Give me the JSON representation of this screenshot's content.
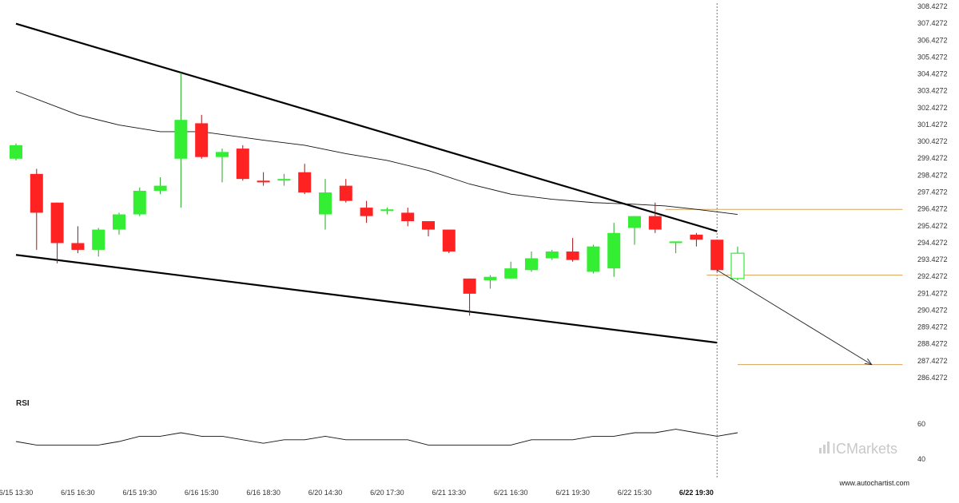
{
  "chart_data": {
    "type": "candlestick",
    "y_axis": {
      "ticks": [
        "308.4272",
        "307.4272",
        "306.4272",
        "305.4272",
        "304.4272",
        "303.4272",
        "302.4272",
        "301.4272",
        "300.4272",
        "299.4272",
        "298.4272",
        "297.4272",
        "296.4272",
        "295.4272",
        "294.4272",
        "293.4272",
        "292.4272",
        "291.4272",
        "290.4272",
        "289.4272",
        "288.4272",
        "287.4272",
        "286.4272"
      ],
      "range": [
        286.0,
        308.4272
      ]
    },
    "x_axis": {
      "ticks": [
        {
          "label": "6/15 13:30",
          "index": 0
        },
        {
          "label": "6/15 16:30",
          "index": 3
        },
        {
          "label": "6/15 19:30",
          "index": 6
        },
        {
          "label": "6/16 15:30",
          "index": 9
        },
        {
          "label": "6/16 18:30",
          "index": 12
        },
        {
          "label": "6/20 14:30",
          "index": 15
        },
        {
          "label": "6/20 17:30",
          "index": 18
        },
        {
          "label": "6/21 13:30",
          "index": 21
        },
        {
          "label": "6/21 16:30",
          "index": 24
        },
        {
          "label": "6/21 19:30",
          "index": 27
        },
        {
          "label": "6/22 15:30",
          "index": 30
        },
        {
          "label": "6/22 19:30",
          "index": 33,
          "bold": true
        }
      ]
    },
    "candles": [
      {
        "o": 299.4,
        "h": 300.3,
        "l": 299.3,
        "c": 300.2
      },
      {
        "o": 298.5,
        "h": 298.8,
        "l": 294.0,
        "c": 296.2
      },
      {
        "o": 296.8,
        "h": 296.8,
        "l": 293.2,
        "c": 294.4
      },
      {
        "o": 294.4,
        "h": 295.4,
        "l": 293.8,
        "c": 294.0
      },
      {
        "o": 294.0,
        "h": 295.3,
        "l": 293.6,
        "c": 295.2
      },
      {
        "o": 295.2,
        "h": 296.2,
        "l": 294.9,
        "c": 296.1
      },
      {
        "o": 296.1,
        "h": 297.7,
        "l": 296.0,
        "c": 297.5
      },
      {
        "o": 297.5,
        "h": 298.3,
        "l": 297.3,
        "c": 297.8
      },
      {
        "o": 299.4,
        "h": 304.5,
        "l": 296.5,
        "c": 301.7
      },
      {
        "o": 301.5,
        "h": 302.0,
        "l": 299.4,
        "c": 299.5
      },
      {
        "o": 299.5,
        "h": 300.0,
        "l": 298.0,
        "c": 299.8
      },
      {
        "o": 300.0,
        "h": 300.2,
        "l": 298.1,
        "c": 298.2
      },
      {
        "o": 298.1,
        "h": 298.6,
        "l": 297.8,
        "c": 298.0
      },
      {
        "o": 298.2,
        "h": 298.5,
        "l": 297.8,
        "c": 298.2
      },
      {
        "o": 298.6,
        "h": 299.1,
        "l": 297.3,
        "c": 297.4
      },
      {
        "o": 296.1,
        "h": 298.2,
        "l": 295.2,
        "c": 297.4
      },
      {
        "o": 297.8,
        "h": 298.2,
        "l": 296.8,
        "c": 296.9
      },
      {
        "o": 296.5,
        "h": 296.9,
        "l": 295.6,
        "c": 296.0
      },
      {
        "o": 296.3,
        "h": 296.5,
        "l": 296.1,
        "c": 296.4
      },
      {
        "o": 296.2,
        "h": 296.5,
        "l": 295.4,
        "c": 295.7
      },
      {
        "o": 295.7,
        "h": 295.7,
        "l": 294.8,
        "c": 295.2
      },
      {
        "o": 295.2,
        "h": 295.2,
        "l": 293.8,
        "c": 293.9
      },
      {
        "o": 292.3,
        "h": 292.3,
        "l": 290.1,
        "c": 291.4
      },
      {
        "o": 292.2,
        "h": 292.5,
        "l": 291.7,
        "c": 292.4
      },
      {
        "o": 292.3,
        "h": 293.3,
        "l": 292.3,
        "c": 292.9
      },
      {
        "o": 292.8,
        "h": 293.9,
        "l": 292.7,
        "c": 293.5
      },
      {
        "o": 293.5,
        "h": 294.0,
        "l": 293.4,
        "c": 293.9
      },
      {
        "o": 293.9,
        "h": 294.7,
        "l": 293.3,
        "c": 293.4
      },
      {
        "o": 292.7,
        "h": 294.3,
        "l": 292.6,
        "c": 294.2
      },
      {
        "o": 292.9,
        "h": 295.6,
        "l": 292.4,
        "c": 295.0
      },
      {
        "o": 295.3,
        "h": 296.0,
        "l": 294.3,
        "c": 296.0
      },
      {
        "o": 296.0,
        "h": 296.8,
        "l": 295.0,
        "c": 295.2
      },
      {
        "o": 294.4,
        "h": 294.5,
        "l": 293.8,
        "c": 294.5
      },
      {
        "o": 294.9,
        "h": 295.0,
        "l": 294.2,
        "c": 294.6
      },
      {
        "o": 294.6,
        "h": 294.6,
        "l": 292.7,
        "c": 292.8
      },
      {
        "o": 292.3,
        "h": 294.2,
        "l": 292.2,
        "c": 293.8
      }
    ],
    "forecast_index": 35,
    "moving_average": [
      {
        "i": 0,
        "v": 303.4
      },
      {
        "i": 3,
        "v": 302.0
      },
      {
        "i": 5,
        "v": 301.4
      },
      {
        "i": 7,
        "v": 301.0
      },
      {
        "i": 9,
        "v": 301.0
      },
      {
        "i": 12,
        "v": 300.5
      },
      {
        "i": 14,
        "v": 300.2
      },
      {
        "i": 16,
        "v": 299.7
      },
      {
        "i": 18,
        "v": 299.3
      },
      {
        "i": 20,
        "v": 298.7
      },
      {
        "i": 22,
        "v": 297.9
      },
      {
        "i": 24,
        "v": 297.3
      },
      {
        "i": 26,
        "v": 297.0
      },
      {
        "i": 28,
        "v": 296.8
      },
      {
        "i": 30,
        "v": 296.7
      },
      {
        "i": 31.5,
        "v": 296.6
      },
      {
        "i": 33,
        "v": 296.4
      },
      {
        "i": 35,
        "v": 296.1
      }
    ],
    "channel": {
      "upper": {
        "from": {
          "i": 0,
          "v": 307.4
        },
        "to": {
          "i": 34,
          "v": 295.1
        }
      },
      "lower": {
        "from": {
          "i": 0,
          "v": 293.7
        },
        "to": {
          "i": 34,
          "v": 288.5
        }
      }
    },
    "levels": [
      {
        "v": 296.4,
        "from_i": 31.5,
        "to_i": 43,
        "color": "#d9a35c"
      },
      {
        "v": 292.5,
        "from_i": 33.5,
        "to_i": 43,
        "color": "#d9a35c"
      },
      {
        "v": 287.2,
        "from_i": 35,
        "to_i": 43,
        "color": "#d9a35c"
      }
    ],
    "projection": {
      "from": {
        "i": 34,
        "v": 292.8
      },
      "to": {
        "i": 41.5,
        "v": 287.2
      }
    },
    "rsi": {
      "label": "RSI",
      "ticks": [
        "60",
        "40"
      ],
      "range": [
        35,
        65
      ],
      "values": [
        {
          "i": 0,
          "v": 50
        },
        {
          "i": 1,
          "v": 48
        },
        {
          "i": 2,
          "v": 48
        },
        {
          "i": 3,
          "v": 48
        },
        {
          "i": 4,
          "v": 48
        },
        {
          "i": 5,
          "v": 50
        },
        {
          "i": 6,
          "v": 53
        },
        {
          "i": 7,
          "v": 53
        },
        {
          "i": 8,
          "v": 55
        },
        {
          "i": 9,
          "v": 53
        },
        {
          "i": 10,
          "v": 53
        },
        {
          "i": 11,
          "v": 51
        },
        {
          "i": 12,
          "v": 49
        },
        {
          "i": 13,
          "v": 51
        },
        {
          "i": 14,
          "v": 51
        },
        {
          "i": 15,
          "v": 53
        },
        {
          "i": 16,
          "v": 51
        },
        {
          "i": 17,
          "v": 51
        },
        {
          "i": 18,
          "v": 51
        },
        {
          "i": 19,
          "v": 51
        },
        {
          "i": 20,
          "v": 48
        },
        {
          "i": 21,
          "v": 48
        },
        {
          "i": 22,
          "v": 48
        },
        {
          "i": 23,
          "v": 48
        },
        {
          "i": 24,
          "v": 48
        },
        {
          "i": 25,
          "v": 51
        },
        {
          "i": 26,
          "v": 51
        },
        {
          "i": 27,
          "v": 51
        },
        {
          "i": 28,
          "v": 53
        },
        {
          "i": 29,
          "v": 53
        },
        {
          "i": 30,
          "v": 55
        },
        {
          "i": 31,
          "v": 55
        },
        {
          "i": 32,
          "v": 57
        },
        {
          "i": 33,
          "v": 55
        },
        {
          "i": 34,
          "v": 53
        },
        {
          "i": 35,
          "v": 55
        }
      ]
    },
    "colors": {
      "bull": "#33ee33",
      "bear": "#ff2222",
      "wick_bull": "#22aa22",
      "wick_bear": "#aa1111",
      "channel": "#000000",
      "ma": "#111111",
      "level": "#d9a35c"
    }
  },
  "branding": {
    "logo_text": "ICMarkets",
    "website": "www.autochartist.com"
  }
}
